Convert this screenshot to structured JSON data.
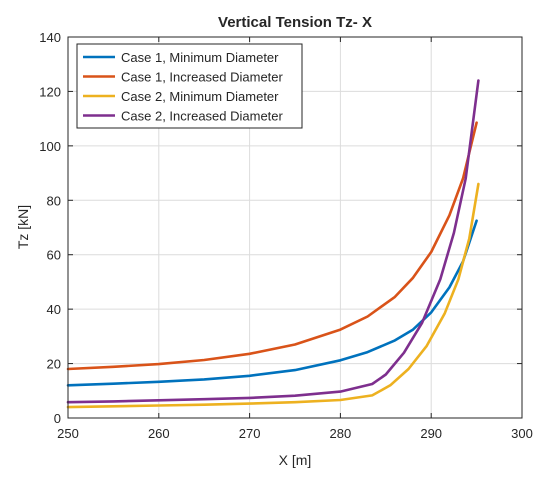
{
  "chart_data": {
    "type": "line",
    "title": "Vertical Tension Tz- X",
    "xlabel": "X [m]",
    "ylabel": "Tz [kN]",
    "xlim": [
      250,
      300
    ],
    "ylim": [
      0,
      140
    ],
    "xticks": [
      250,
      260,
      270,
      280,
      290,
      300
    ],
    "yticks": [
      0,
      20,
      40,
      60,
      80,
      100,
      120,
      140
    ],
    "grid": true,
    "legend_position": "top-left",
    "series": [
      {
        "name": "Case 1, Minimum Diameter",
        "color": "#0072BD",
        "x": [
          250,
          255,
          260,
          265,
          270,
          275,
          280,
          283,
          286,
          288,
          290,
          292,
          293.5,
          295
        ],
        "y": [
          12.0,
          12.6,
          13.3,
          14.2,
          15.5,
          17.6,
          21.2,
          24.2,
          28.5,
          32.5,
          38.8,
          48.0,
          57.5,
          72.5
        ]
      },
      {
        "name": "Case 1, Increased Diameter",
        "color": "#D95319",
        "x": [
          250,
          255,
          260,
          265,
          270,
          275,
          280,
          283,
          286,
          288,
          290,
          292,
          293.5,
          295
        ],
        "y": [
          18.0,
          18.8,
          19.8,
          21.3,
          23.6,
          27.0,
          32.5,
          37.3,
          44.5,
          51.5,
          61.0,
          74.5,
          88.0,
          108.5
        ]
      },
      {
        "name": "Case 2, Minimum Diameter",
        "color": "#EDB120",
        "x": [
          250,
          255,
          260,
          265,
          270,
          275,
          280,
          283.5,
          285.5,
          287.5,
          289.5,
          291.5,
          293,
          294.2,
          295.2
        ],
        "y": [
          4.0,
          4.3,
          4.6,
          4.9,
          5.3,
          5.8,
          6.6,
          8.3,
          12.0,
          18.0,
          26.5,
          38.5,
          51.0,
          66.0,
          86.0
        ]
      },
      {
        "name": "Case 2, Increased Diameter",
        "color": "#7E2F8E",
        "x": [
          250,
          255,
          260,
          265,
          270,
          275,
          280,
          283.5,
          285,
          287,
          289,
          291,
          292.5,
          293.8,
          295.2
        ],
        "y": [
          5.8,
          6.1,
          6.5,
          6.9,
          7.4,
          8.2,
          9.7,
          12.5,
          16.0,
          24.0,
          35.0,
          51.0,
          68.0,
          88.0,
          124.0
        ]
      }
    ]
  }
}
